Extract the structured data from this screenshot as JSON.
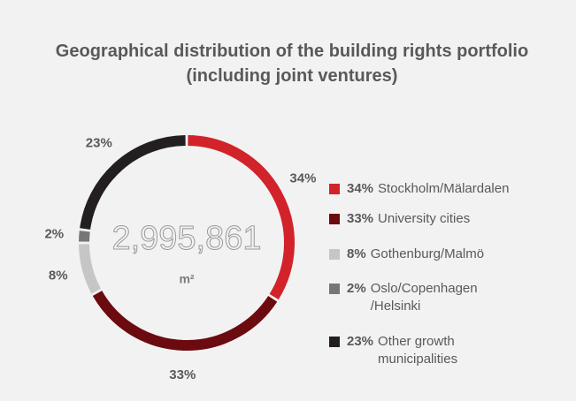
{
  "chart_data": {
    "type": "donut",
    "title": "Geographical distribution of the building rights portfolio (including joint ventures)",
    "center_label": "2,995,861",
    "center_unit": "m²",
    "categories": [
      "Stockholm/Mälardalen",
      "University cities",
      "Gothenburg/Malmö",
      "Oslo/Copenhagen /Helsinki",
      "Other growth municipalities"
    ],
    "values": [
      34,
      33,
      8,
      2,
      23
    ],
    "value_labels": [
      "34%",
      "33%",
      "8%",
      "2%",
      "23%"
    ],
    "colors": [
      "#d2232a",
      "#6b0b0f",
      "#c6c6c6",
      "#767676",
      "#231f20"
    ],
    "legend": "right"
  }
}
